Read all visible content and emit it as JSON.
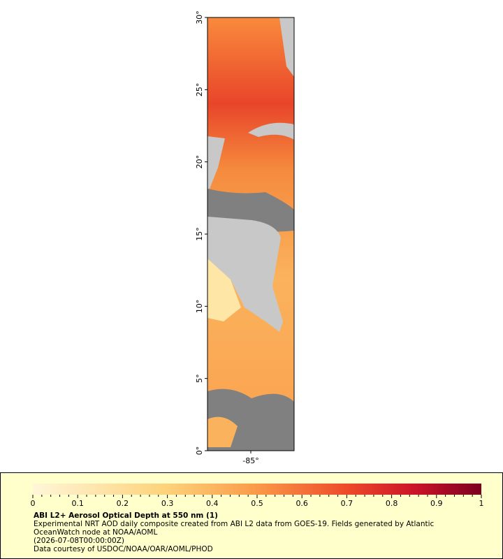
{
  "map": {
    "lat_range": [
      0,
      30
    ],
    "lon_range": [
      -88,
      -82
    ],
    "lat_ticks": [
      {
        "value": 0,
        "label": "0°"
      },
      {
        "value": 5,
        "label": "5°"
      },
      {
        "value": 10,
        "label": "10°"
      },
      {
        "value": 15,
        "label": "15°"
      },
      {
        "value": 20,
        "label": "20°"
      },
      {
        "value": 25,
        "label": "25°"
      },
      {
        "value": 30,
        "label": "30°"
      }
    ],
    "lon_ticks": [
      {
        "value": -85,
        "label": "-85°"
      }
    ]
  },
  "colorbar": {
    "range": [
      0,
      1
    ],
    "ticks": [
      0,
      0.1,
      0.2,
      0.3,
      0.4,
      0.5,
      0.6,
      0.7,
      0.8,
      0.9,
      1
    ]
  },
  "caption": {
    "title": "ABI L2+ Aerosol Optical Depth at 550 nm (1)",
    "lines": [
      "Experimental NRT AOD daily composite created from ABI L2 data from GOES-19. Fields generated by Atlantic",
      "OceanWatch node at NOAA/AOML",
      "(2026-07-08T00:00:00Z)",
      "Data courtesy of USDOC/NOAA/OAR/AOML/PHOD"
    ]
  }
}
